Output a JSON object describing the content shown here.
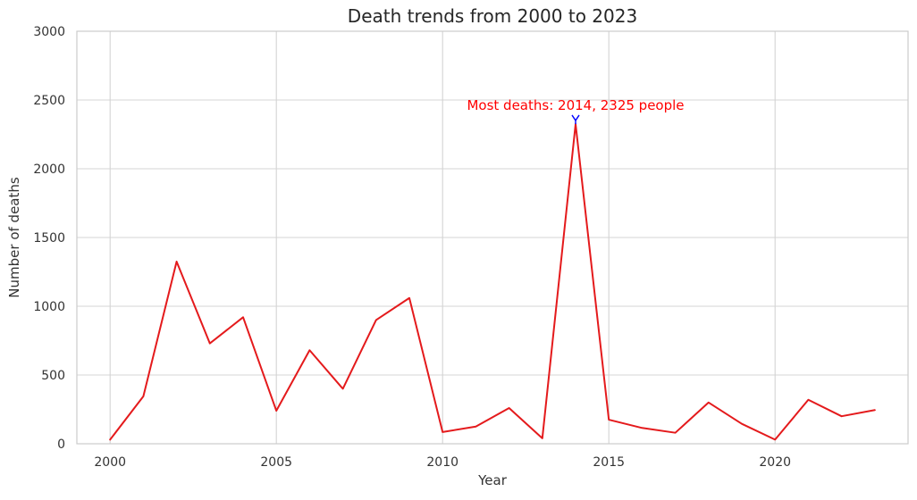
{
  "chart_data": {
    "type": "line",
    "title": "Death trends from 2000 to 2023",
    "xlabel": "Year",
    "ylabel": "Number of deaths",
    "xlim": [
      1999,
      2024
    ],
    "ylim": [
      0,
      3000
    ],
    "x_ticks": [
      2000,
      2005,
      2010,
      2015,
      2020
    ],
    "y_ticks": [
      0,
      500,
      1000,
      1500,
      2000,
      2500,
      3000
    ],
    "grid": true,
    "series": [
      {
        "color": "#e41a1c",
        "x": [
          2000,
          2001,
          2002,
          2003,
          2004,
          2005,
          2006,
          2007,
          2008,
          2009,
          2010,
          2011,
          2012,
          2013,
          2014,
          2015,
          2016,
          2017,
          2018,
          2019,
          2020,
          2021,
          2022,
          2023
        ],
        "y": [
          30,
          345,
          1325,
          730,
          920,
          240,
          680,
          400,
          900,
          1060,
          85,
          125,
          260,
          40,
          2325,
          175,
          115,
          80,
          300,
          145,
          30,
          320,
          200,
          245
        ]
      }
    ],
    "annotation": {
      "text": "Most deaths: 2014, 2325 people",
      "x": 2014,
      "y": 2325,
      "text_color": "#ff0000",
      "marker_color": "#0000ff"
    }
  }
}
